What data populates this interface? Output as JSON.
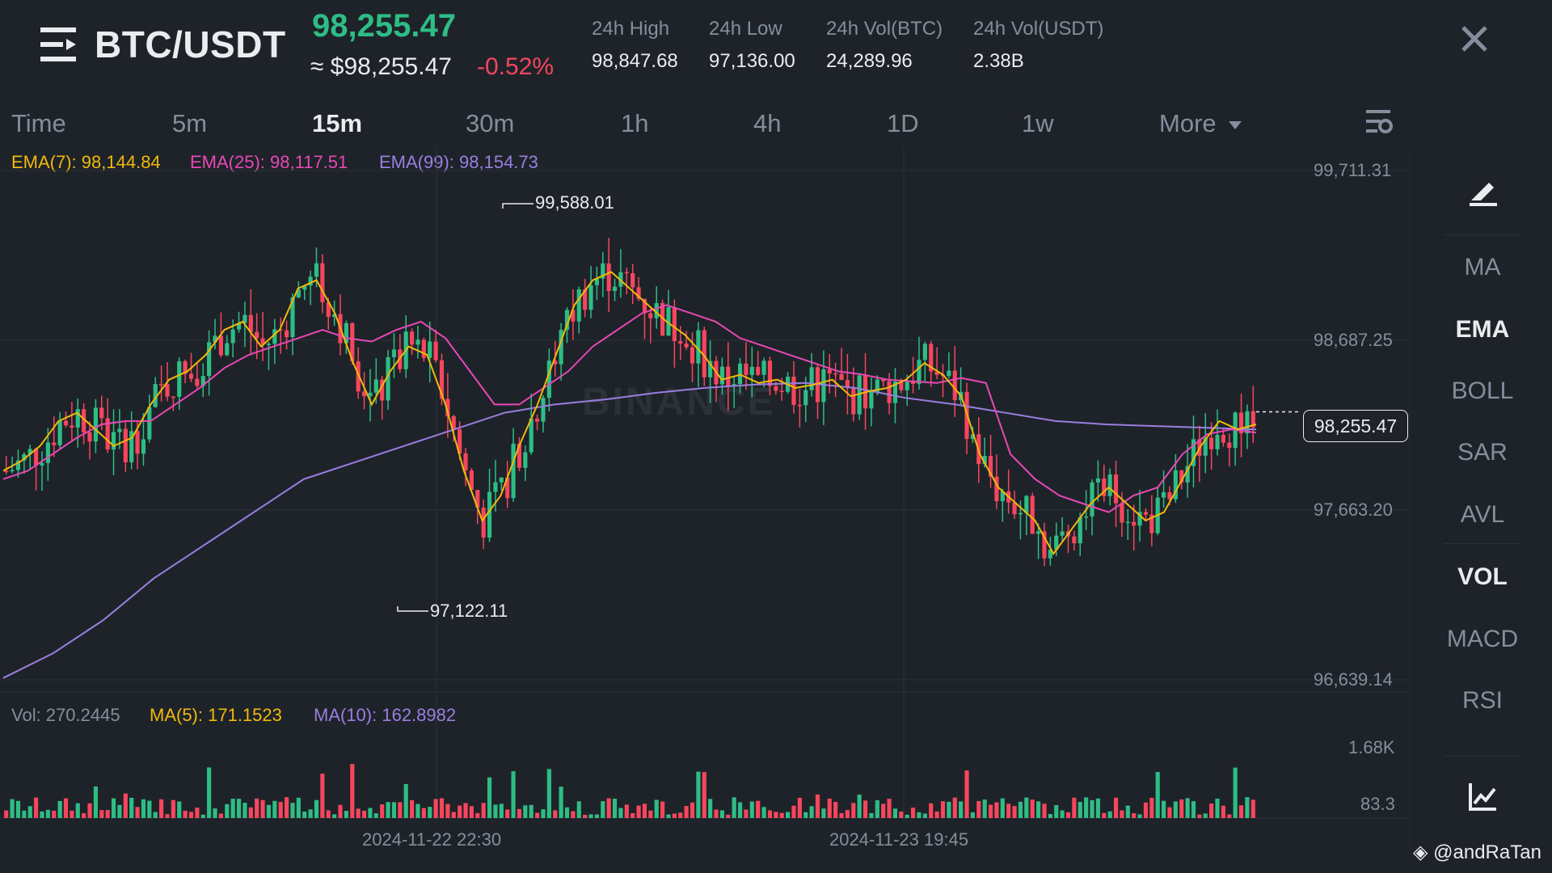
{
  "header": {
    "pair": "BTC/USDT",
    "last_price": "98,255.47",
    "fiat_price": "≈ $98,255.47",
    "change_pct": "-0.52%",
    "stats": [
      {
        "label": "24h High",
        "value": "98,847.68"
      },
      {
        "label": "24h Low",
        "value": "97,136.00"
      },
      {
        "label": "24h Vol(BTC)",
        "value": "24,289.96"
      },
      {
        "label": "24h Vol(USDT)",
        "value": "2.38B"
      }
    ]
  },
  "timeframes": [
    "Time",
    "5m",
    "15m",
    "30m",
    "1h",
    "4h",
    "1D",
    "1w",
    "More"
  ],
  "active_timeframe": "15m",
  "chart_data": {
    "type": "candlestick",
    "y_ticks": [
      "99,711.31",
      "98,687.25",
      "97,663.20",
      "96,639.14"
    ],
    "ylim": [
      96639.14,
      99711.31
    ],
    "x_ticks": [
      "2024-11-22 22:30",
      "2024-11-23 19:45"
    ],
    "current_price_tag": "98,255.47",
    "high_marker": "99,588.01",
    "low_marker": "97,122.11",
    "legend": {
      "ema7": "EMA(7): 98,144.84",
      "ema25": "EMA(25): 98,117.51",
      "ema99": "EMA(99): 98,154.73"
    },
    "volume_legend": {
      "vol": "Vol: 270.2445",
      "ma5": "MA(5): 171.1523",
      "ma10": "MA(10): 162.8982"
    },
    "volume_ticks": [
      "1.68K",
      "83.3"
    ],
    "ema7_path_prices": [
      97900,
      97960,
      98050,
      98200,
      98250,
      98150,
      98050,
      98100,
      98300,
      98450,
      98500,
      98600,
      98750,
      98800,
      98650,
      98750,
      99000,
      99050,
      98850,
      98550,
      98300,
      98500,
      98650,
      98600,
      98300,
      97900,
      97600,
      97750,
      98050,
      98300,
      98600,
      98900,
      99050,
      99100,
      99000,
      98900,
      98800,
      98720,
      98600,
      98450,
      98480,
      98430,
      98450,
      98400,
      98420,
      98450,
      98350,
      98380,
      98400,
      98450,
      98550,
      98480,
      98350,
      98000,
      97800,
      97700,
      97600,
      97400,
      97550,
      97700,
      97800,
      97700,
      97600,
      97650,
      97850,
      98050,
      98200,
      98150,
      98180
    ],
    "ema25_path_prices": [
      97850,
      97900,
      98000,
      98100,
      98180,
      98200,
      98200,
      98300,
      98400,
      98520,
      98600,
      98650,
      98700,
      98750,
      98700,
      98680,
      98750,
      98800,
      98700,
      98500,
      98300,
      98300,
      98400,
      98500,
      98650,
      98750,
      98850,
      98900,
      98850,
      98800,
      98700,
      98650,
      98600,
      98550,
      98500,
      98480,
      98450,
      98440,
      98430,
      98460,
      98430,
      98000,
      97850,
      97750,
      97700,
      97650,
      97750,
      97800,
      98000,
      98120,
      98150,
      98130
    ],
    "ema99_path_prices": [
      96650,
      96800,
      97000,
      97250,
      97450,
      97650,
      97850,
      97950,
      98050,
      98150,
      98250,
      98300,
      98330,
      98370,
      98400,
      98420,
      98430,
      98400,
      98340,
      98300,
      98250,
      98200,
      98180,
      98170,
      98160,
      98150
    ],
    "ema_colors": {
      "ema7": "#f0b90b",
      "ema25": "#e848b6",
      "ema99": "#9b7ee0"
    },
    "candle_colors": {
      "up": "#2ebd85",
      "down": "#f6465d"
    }
  },
  "sidebar": [
    "MA",
    "EMA",
    "BOLL",
    "SAR",
    "AVL",
    "VOL",
    "MACD",
    "RSI"
  ],
  "sidebar_active": [
    "EMA",
    "VOL"
  ],
  "watermark": "BINANCE",
  "credit": "@andRaTan"
}
